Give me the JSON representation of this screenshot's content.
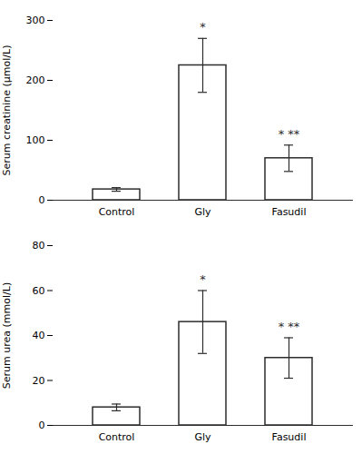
{
  "chart_data": [
    {
      "type": "bar",
      "categories": [
        "Control",
        "Gly",
        "Fasudil"
      ],
      "values": [
        18,
        225,
        70
      ],
      "errors": [
        3,
        45,
        22
      ],
      "ylabel": "Serum creatinine (μmol/L)",
      "ylim": [
        0,
        300
      ],
      "yticks": [
        0,
        100,
        200,
        300
      ],
      "color": "#2d2d2d",
      "annotations": [
        {
          "category": "Gly",
          "text": "*"
        },
        {
          "category": "Fasudil",
          "text": "* **"
        }
      ]
    },
    {
      "type": "bar",
      "categories": [
        "Control",
        "Gly",
        "Fasudil"
      ],
      "values": [
        8,
        46,
        30
      ],
      "errors": [
        1.5,
        14,
        9
      ],
      "ylabel": "Serum urea (mmol/L)",
      "ylim": [
        0,
        80
      ],
      "yticks": [
        0,
        20,
        40,
        60,
        80
      ],
      "color": "#2d2d2d",
      "annotations": [
        {
          "category": "Gly",
          "text": "*"
        },
        {
          "category": "Fasudil",
          "text": "* **"
        }
      ]
    }
  ]
}
